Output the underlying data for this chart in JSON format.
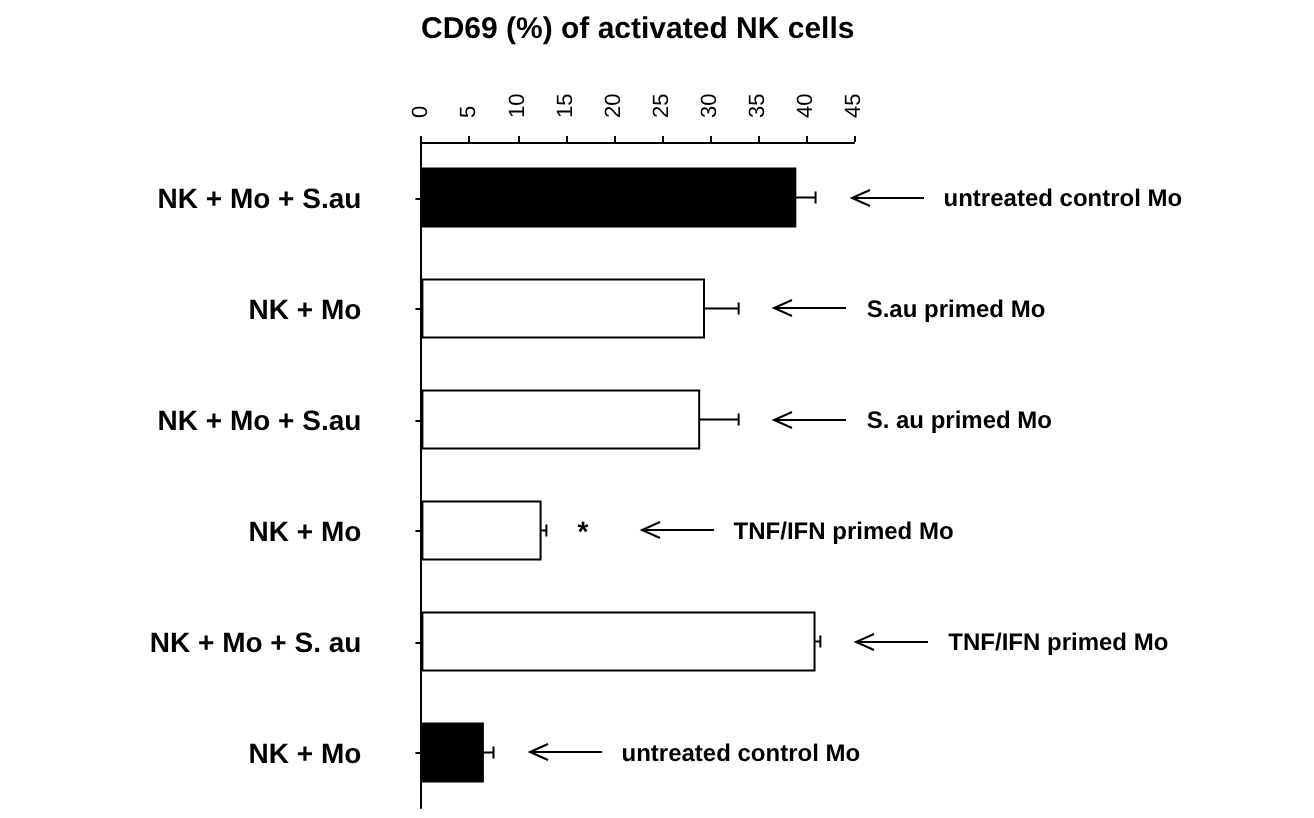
{
  "chart_data": {
    "type": "bar",
    "orientation": "horizontal",
    "xlabel": "CD69 (%) of activated NK cells",
    "categories": [
      "NK + Mo + S.au",
      "NK + Mo",
      "NK + Mo + S.au",
      "NK + Mo",
      "NK + Mo + S. au",
      "NK + Mo"
    ],
    "values": [
      39,
      29.5,
      29,
      12.5,
      41,
      6.5
    ],
    "errors": [
      2,
      3.5,
      4,
      0.5,
      0.5,
      1
    ],
    "colors": [
      "#000000",
      "#ffffff",
      "#ffffff",
      "#ffffff",
      "#ffffff",
      "#000000"
    ],
    "value_labels": [
      null,
      null,
      null,
      "*",
      null,
      null
    ],
    "xlim": [
      0,
      45
    ],
    "xticks": [
      0,
      5,
      10,
      15,
      20,
      25,
      30,
      35,
      40,
      45
    ],
    "annotations": [
      "untreated control Mo",
      "S.au primed Mo",
      "S. au primed Mo",
      "TNF/IFN primed Mo",
      "TNF/IFN primed Mo",
      "untreated control Mo"
    ]
  }
}
